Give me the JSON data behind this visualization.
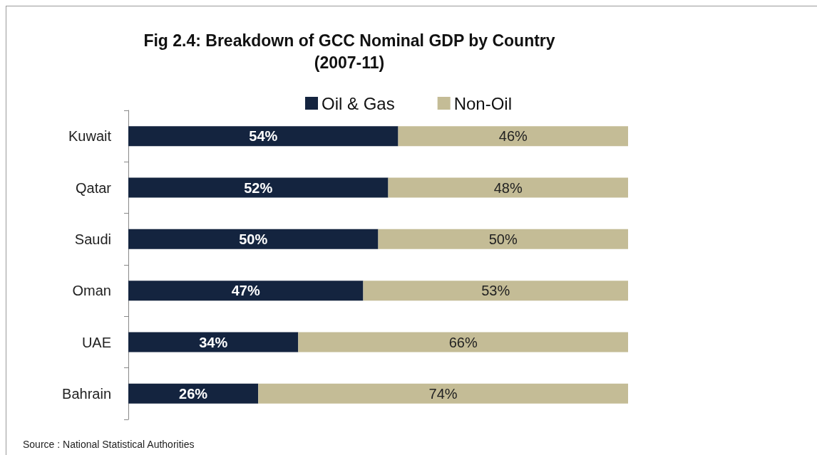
{
  "chart_data": {
    "type": "bar",
    "orientation": "horizontal",
    "stacked": true,
    "title": "Fig 2.4: Breakdown of GCC Nominal GDP by Country",
    "subtitle": "(2007-11)",
    "categories": [
      "Kuwait",
      "Qatar",
      "Saudi",
      "Oman",
      "UAE",
      "Bahrain"
    ],
    "series": [
      {
        "name": "Oil & Gas",
        "color": "#14243f",
        "values": [
          54,
          52,
          50,
          47,
          34,
          26
        ],
        "value_labels": [
          "54%",
          "52%",
          "50%",
          "47%",
          "34%",
          "26%"
        ]
      },
      {
        "name": "Non-Oil",
        "color": "#c4bc96",
        "values": [
          46,
          48,
          50,
          53,
          66,
          74
        ],
        "value_labels": [
          "46%",
          "48%",
          "50%",
          "53%",
          "66%",
          "74%"
        ]
      }
    ],
    "legend": "top",
    "annotations": [
      "Source : National Statistical Authorities"
    ]
  }
}
